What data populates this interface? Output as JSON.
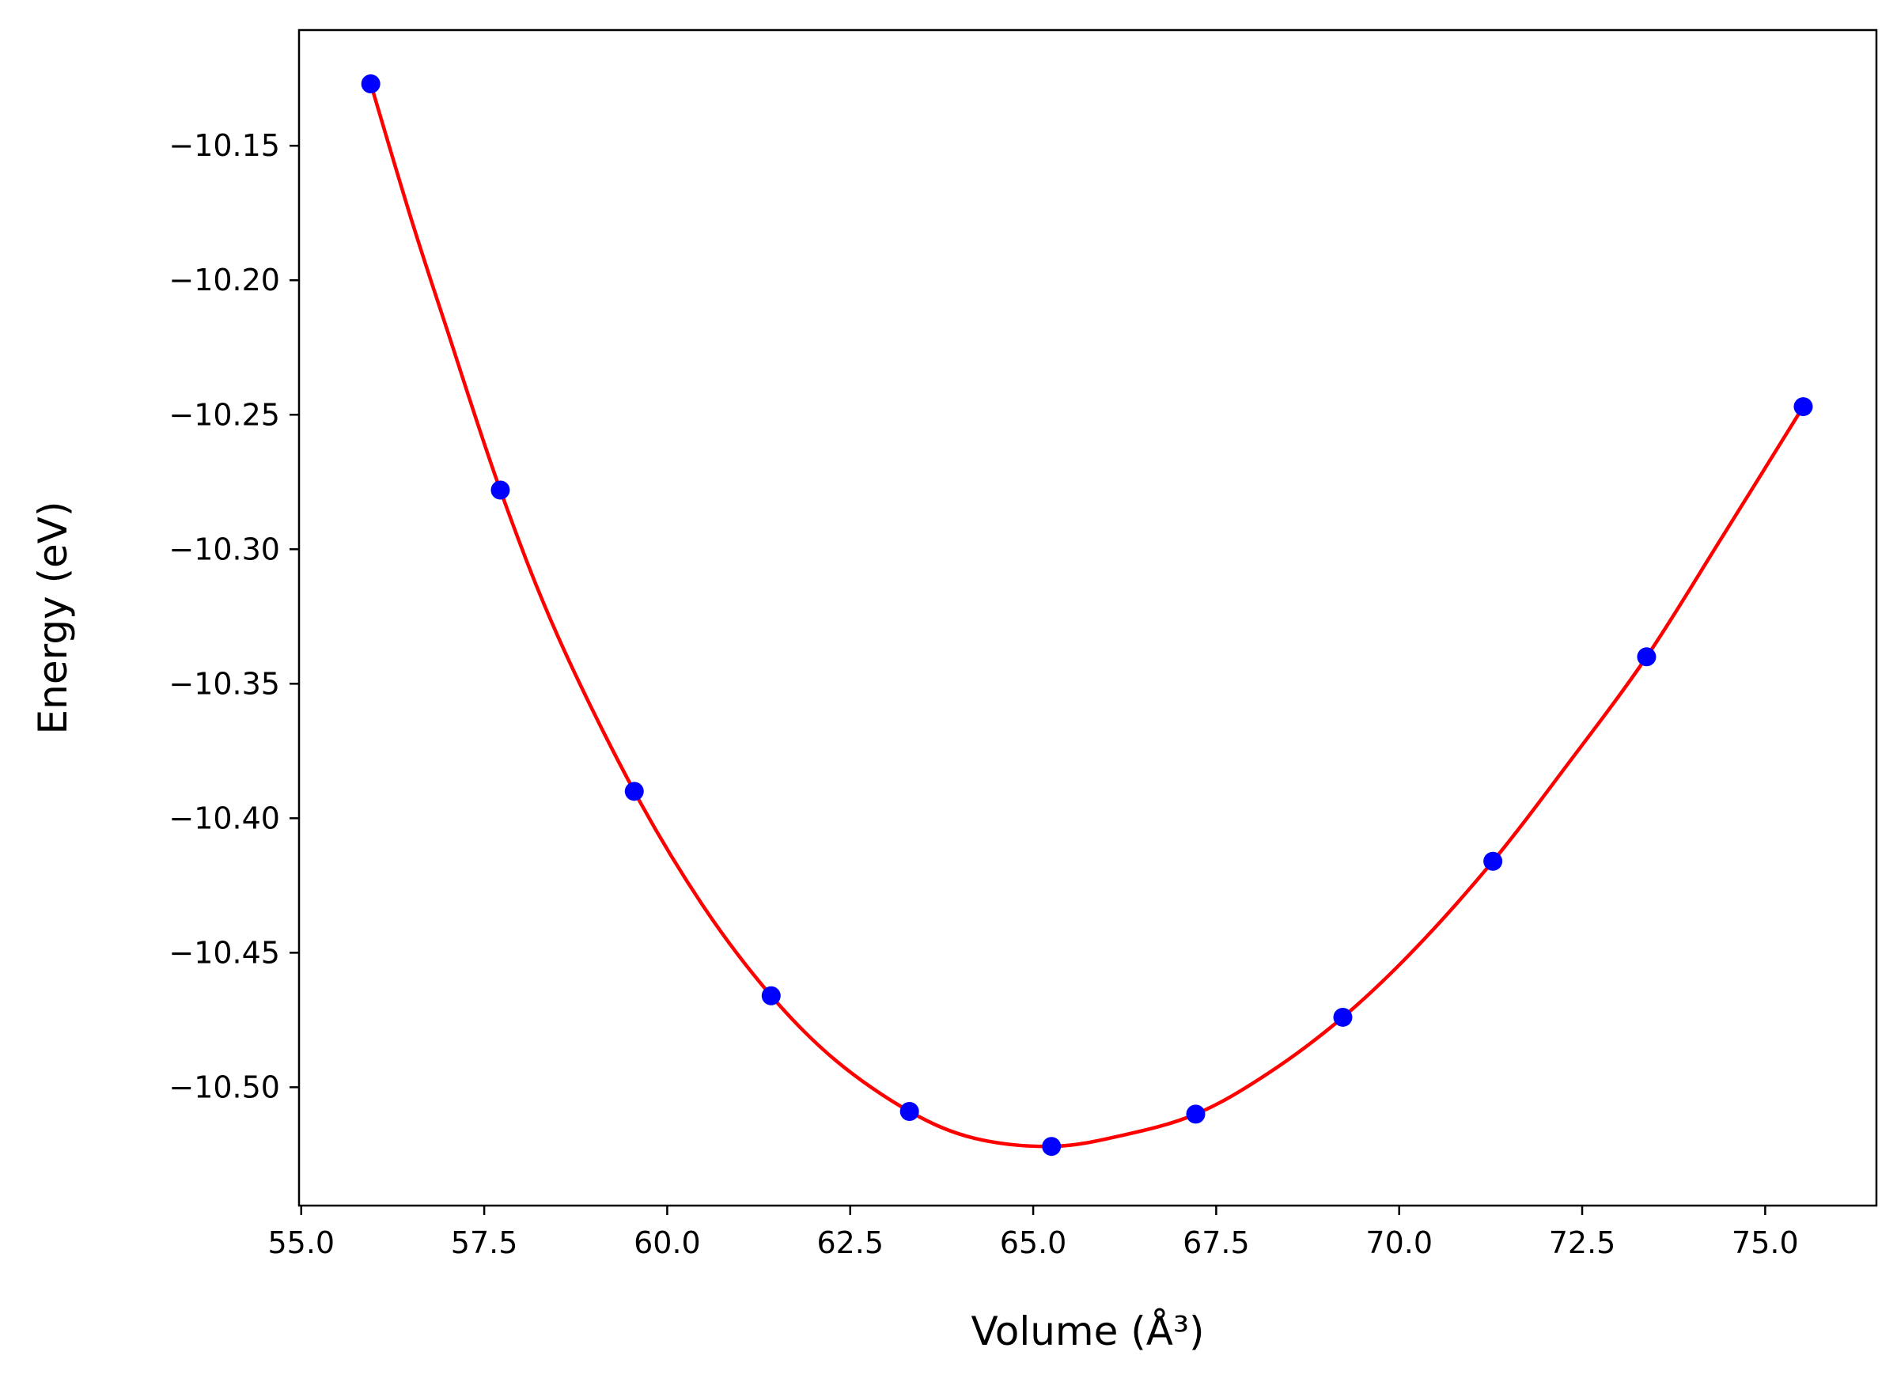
{
  "chart_data": {
    "type": "line",
    "title": "",
    "xlabel": "Volume (Å³)",
    "ylabel": "Energy (eV)",
    "xlim": [
      54.97,
      76.52
    ],
    "ylim": [
      -10.544,
      -10.107
    ],
    "xticks": [
      55.0,
      57.5,
      60.0,
      62.5,
      65.0,
      67.5,
      70.0,
      72.5,
      75.0
    ],
    "xtick_labels": [
      "55.0",
      "57.5",
      "60.0",
      "62.5",
      "65.0",
      "67.5",
      "70.0",
      "72.5",
      "75.0"
    ],
    "yticks": [
      -10.15,
      -10.2,
      -10.25,
      -10.3,
      -10.35,
      -10.4,
      -10.45,
      -10.5
    ],
    "ytick_labels": [
      "−10.15",
      "−10.20",
      "−10.25",
      "−10.30",
      "−10.35",
      "−10.40",
      "−10.45",
      "−10.50"
    ],
    "grid": false,
    "legend": "none",
    "series": [
      {
        "kind": "scatter",
        "color": "#0000ff",
        "x": [
          55.95,
          57.72,
          59.55,
          61.42,
          63.31,
          65.25,
          67.22,
          69.23,
          71.28,
          73.38,
          75.52
        ],
        "y": [
          -10.127,
          -10.278,
          -10.39,
          -10.466,
          -10.509,
          -10.522,
          -10.51,
          -10.474,
          -10.416,
          -10.34,
          -10.247
        ]
      },
      {
        "kind": "fit-curve",
        "color": "#ff0000",
        "x": [
          55.95,
          56.5,
          57.0,
          57.72,
          58.5,
          59.55,
          60.5,
          61.42,
          62.3,
          63.31,
          64.2,
          65.25,
          66.2,
          67.22,
          68.2,
          69.23,
          70.2,
          71.28,
          72.3,
          73.38,
          74.4,
          75.52
        ],
        "y": [
          -10.127,
          -10.177,
          -10.219,
          -10.278,
          -10.332,
          -10.39,
          -10.433,
          -10.466,
          -10.49,
          -10.509,
          -10.519,
          -10.522,
          -10.518,
          -10.51,
          -10.495,
          -10.474,
          -10.449,
          -10.416,
          -10.38,
          -10.34,
          -10.296,
          -10.247
        ]
      }
    ]
  }
}
